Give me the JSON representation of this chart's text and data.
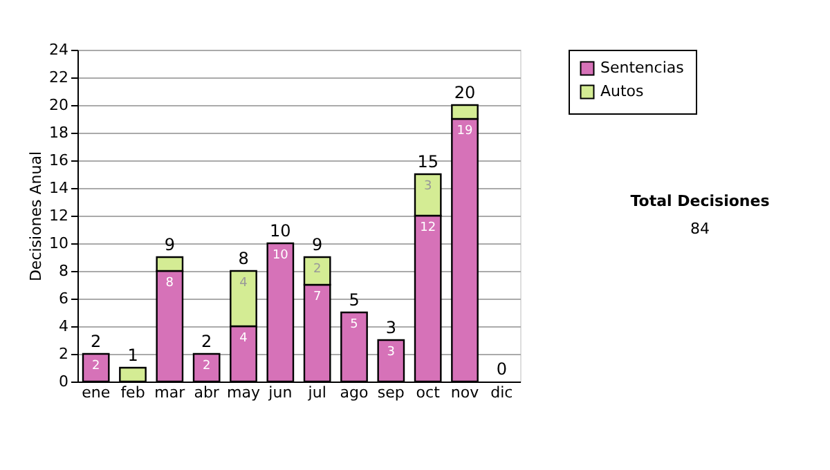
{
  "chart_data": {
    "type": "bar",
    "stacked": true,
    "ylabel": "Decisiones Anual",
    "categories": [
      "ene",
      "feb",
      "mar",
      "abr",
      "may",
      "jun",
      "jul",
      "ago",
      "sep",
      "oct",
      "nov",
      "dic"
    ],
    "series": [
      {
        "name": "Sentencias",
        "color": "#d672b8",
        "values": [
          2,
          0,
          8,
          2,
          4,
          10,
          7,
          5,
          3,
          12,
          19,
          0
        ],
        "value_labels": [
          "2",
          null,
          "8",
          "2",
          "4",
          "10",
          "7",
          "5",
          "3",
          "12",
          "19",
          null
        ]
      },
      {
        "name": "Autos",
        "color": "#d4ec94",
        "values": [
          0,
          1,
          1,
          0,
          4,
          0,
          2,
          0,
          0,
          3,
          1,
          0
        ],
        "value_labels": [
          null,
          null,
          null,
          null,
          "4",
          null,
          "2",
          null,
          null,
          "3",
          null,
          null
        ]
      }
    ],
    "totals": [
      "2",
      "1",
      "9",
      "2",
      "8",
      "10",
      "9",
      "5",
      "3",
      "15",
      "20",
      "0"
    ],
    "ylim": [
      0,
      24
    ],
    "yticks": [
      0,
      2,
      4,
      6,
      8,
      10,
      12,
      14,
      16,
      18,
      20,
      22,
      24
    ],
    "grid": "y",
    "legend": "right",
    "annotations": [
      "Total Decisiones",
      "84"
    ]
  }
}
